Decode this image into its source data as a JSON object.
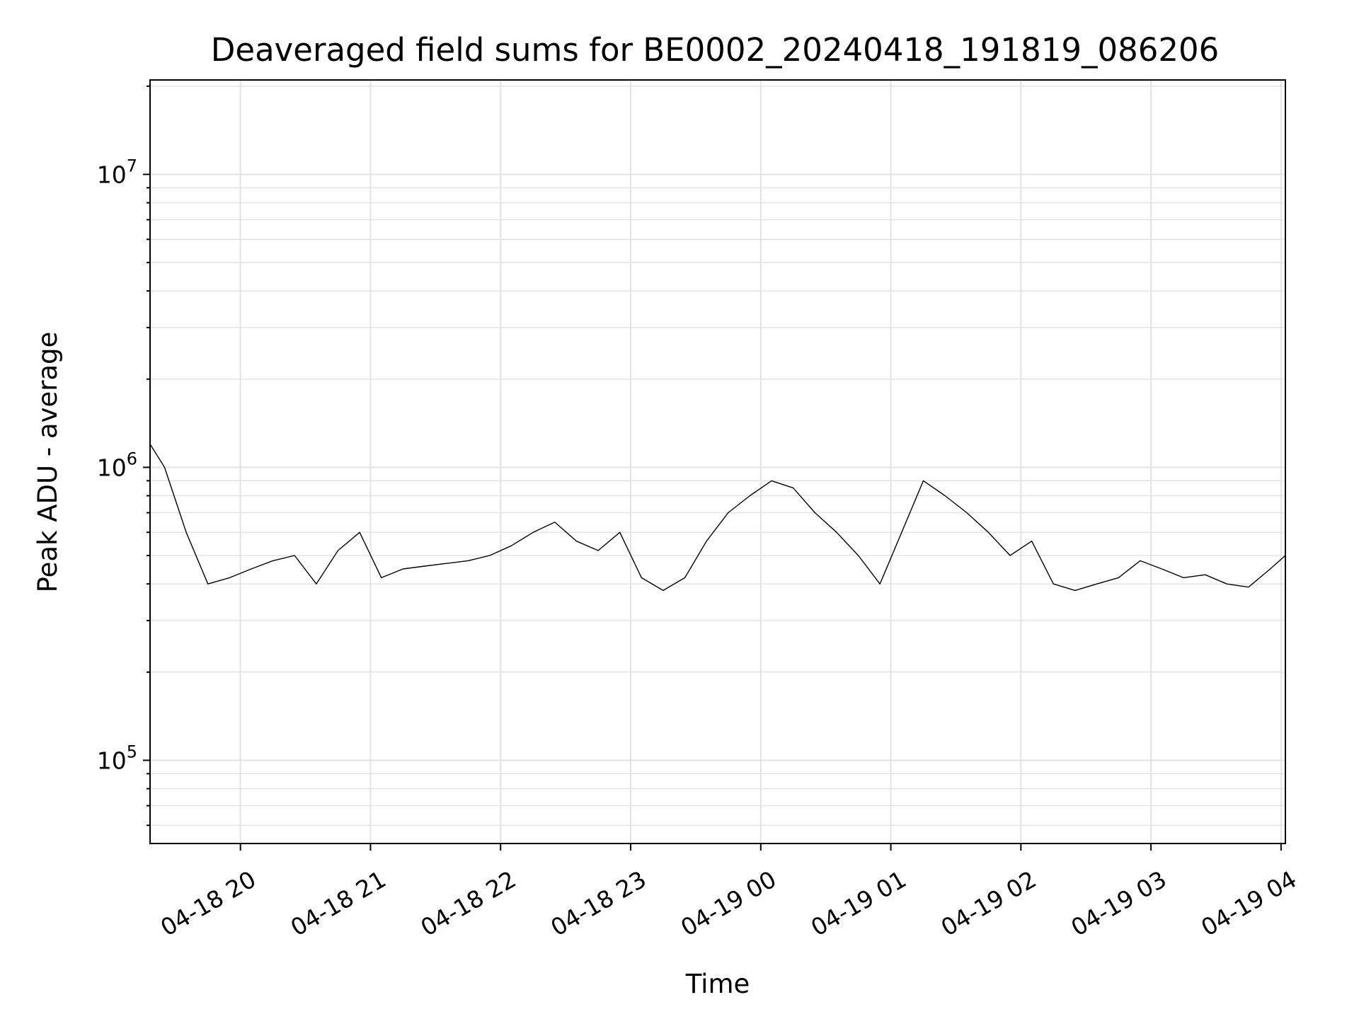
{
  "chart_data": {
    "type": "line",
    "title": "Deaveraged field sums for BE0002_20240418_191819_086206",
    "xlabel": "Time",
    "ylabel": "Peak ADU - average",
    "yscale": "log",
    "ylim": [
      52000,
      21000000
    ],
    "xlim": [
      "2024-04-18 19:18:19",
      "2024-04-19 04:02:00"
    ],
    "grid": true,
    "line_color": "#000000",
    "x_ticks": [
      "04-18 20",
      "04-18 21",
      "04-18 22",
      "04-18 23",
      "04-19 00",
      "04-19 01",
      "04-19 02",
      "04-19 03",
      "04-19 04"
    ],
    "y_ticks": [
      {
        "base": "10",
        "exp": "5"
      },
      {
        "base": "10",
        "exp": "6"
      },
      {
        "base": "10",
        "exp": "7"
      }
    ],
    "series": [
      {
        "x": [
          "2024-04-18 19:18:19",
          "2024-04-18 19:25",
          "2024-04-18 19:35",
          "2024-04-18 19:45",
          "2024-04-18 19:55",
          "2024-04-18 20:05",
          "2024-04-18 20:15",
          "2024-04-18 20:25",
          "2024-04-18 20:35",
          "2024-04-18 20:45",
          "2024-04-18 20:55",
          "2024-04-18 21:05",
          "2024-04-18 21:15",
          "2024-04-18 21:25",
          "2024-04-18 21:35",
          "2024-04-18 21:45",
          "2024-04-18 21:55",
          "2024-04-18 22:05",
          "2024-04-18 22:15",
          "2024-04-18 22:25",
          "2024-04-18 22:35",
          "2024-04-18 22:45",
          "2024-04-18 22:55",
          "2024-04-18 23:05",
          "2024-04-18 23:15",
          "2024-04-18 23:25",
          "2024-04-18 23:35",
          "2024-04-18 23:45",
          "2024-04-18 23:55",
          "2024-04-19 00:05",
          "2024-04-19 00:15",
          "2024-04-19 00:25",
          "2024-04-19 00:35",
          "2024-04-19 00:45",
          "2024-04-19 00:55",
          "2024-04-19 01:05",
          "2024-04-19 01:15",
          "2024-04-19 01:25",
          "2024-04-19 01:35",
          "2024-04-19 01:45",
          "2024-04-19 01:55",
          "2024-04-19 02:05",
          "2024-04-19 02:15",
          "2024-04-19 02:25",
          "2024-04-19 02:35",
          "2024-04-19 02:45",
          "2024-04-19 02:55",
          "2024-04-19 03:05",
          "2024-04-19 03:15",
          "2024-04-19 03:25",
          "2024-04-19 03:35",
          "2024-04-19 03:45",
          "2024-04-19 03:55",
          "2024-04-19 04:02"
        ],
        "values": [
          1200000,
          1000000,
          600000,
          400000,
          420000,
          450000,
          480000,
          500000,
          400000,
          520000,
          600000,
          420000,
          450000,
          460000,
          470000,
          480000,
          500000,
          540000,
          600000,
          650000,
          560000,
          520000,
          600000,
          420000,
          380000,
          420000,
          560000,
          700000,
          800000,
          900000,
          850000,
          700000,
          600000,
          500000,
          400000,
          600000,
          900000,
          800000,
          700000,
          600000,
          500000,
          560000,
          400000,
          380000,
          400000,
          420000,
          480000,
          450000,
          420000,
          430000,
          400000,
          390000,
          450000,
          500000
        ]
      }
    ]
  }
}
